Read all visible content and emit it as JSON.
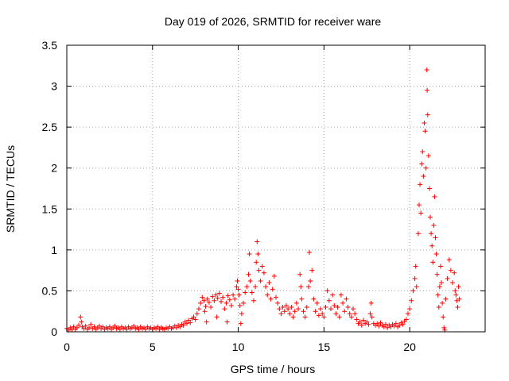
{
  "chart_data": {
    "type": "scatter",
    "title": "Day 019 of 2026, SRMTID for receiver ware",
    "xlabel": "GPS time / hours",
    "ylabel": "SRMTID / TECUs",
    "xlim": [
      0,
      24.4
    ],
    "ylim": [
      0,
      3.5
    ],
    "x_ticks": [
      0,
      5,
      10,
      15,
      20
    ],
    "x_tick_labels": [
      "0",
      "5",
      "10",
      "15",
      "20"
    ],
    "y_ticks": [
      0,
      0.5,
      1,
      1.5,
      2,
      2.5,
      3,
      3.5
    ],
    "y_tick_labels": [
      "0",
      "0.5",
      "1",
      "1.5",
      "2",
      "2.5",
      "3",
      "3.5"
    ],
    "grid": true,
    "marker": "+",
    "series": [
      {
        "name": "SRMTID",
        "color": "#ff0000",
        "points": [
          [
            0.0,
            0.04
          ],
          [
            0.1,
            0.02
          ],
          [
            0.2,
            0.05
          ],
          [
            0.3,
            0.03
          ],
          [
            0.4,
            0.06
          ],
          [
            0.5,
            0.03
          ],
          [
            0.6,
            0.05
          ],
          [
            0.7,
            0.08
          ],
          [
            0.8,
            0.18
          ],
          [
            0.85,
            0.12
          ],
          [
            0.9,
            0.06
          ],
          [
            1.0,
            0.04
          ],
          [
            1.1,
            0.07
          ],
          [
            1.2,
            0.03
          ],
          [
            1.3,
            0.05
          ],
          [
            1.4,
            0.09
          ],
          [
            1.5,
            0.04
          ],
          [
            1.6,
            0.06
          ],
          [
            1.7,
            0.03
          ],
          [
            1.8,
            0.05
          ],
          [
            1.9,
            0.07
          ],
          [
            2.0,
            0.04
          ],
          [
            2.1,
            0.06
          ],
          [
            2.2,
            0.03
          ],
          [
            2.3,
            0.05
          ],
          [
            2.4,
            0.04
          ],
          [
            2.5,
            0.06
          ],
          [
            2.6,
            0.03
          ],
          [
            2.7,
            0.05
          ],
          [
            2.8,
            0.07
          ],
          [
            2.9,
            0.04
          ],
          [
            3.0,
            0.05
          ],
          [
            3.1,
            0.03
          ],
          [
            3.2,
            0.06
          ],
          [
            3.3,
            0.04
          ],
          [
            3.4,
            0.05
          ],
          [
            3.5,
            0.03
          ],
          [
            3.6,
            0.06
          ],
          [
            3.7,
            0.04
          ],
          [
            3.8,
            0.05
          ],
          [
            3.9,
            0.07
          ],
          [
            4.0,
            0.04
          ],
          [
            4.1,
            0.05
          ],
          [
            4.2,
            0.03
          ],
          [
            4.3,
            0.06
          ],
          [
            4.4,
            0.04
          ],
          [
            4.5,
            0.05
          ],
          [
            4.6,
            0.03
          ],
          [
            4.7,
            0.06
          ],
          [
            4.8,
            0.04
          ],
          [
            4.9,
            0.05
          ],
          [
            5.0,
            0.03
          ],
          [
            5.1,
            0.05
          ],
          [
            5.2,
            0.04
          ],
          [
            5.3,
            0.06
          ],
          [
            5.4,
            0.03
          ],
          [
            5.5,
            0.05
          ],
          [
            5.6,
            0.04
          ],
          [
            5.7,
            0.03
          ],
          [
            5.8,
            0.05
          ],
          [
            5.9,
            0.04
          ],
          [
            6.0,
            0.06
          ],
          [
            6.1,
            0.04
          ],
          [
            6.2,
            0.05
          ],
          [
            6.3,
            0.07
          ],
          [
            6.4,
            0.05
          ],
          [
            6.5,
            0.08
          ],
          [
            6.6,
            0.06
          ],
          [
            6.7,
            0.09
          ],
          [
            6.8,
            0.08
          ],
          [
            6.9,
            0.12
          ],
          [
            7.0,
            0.1
          ],
          [
            7.1,
            0.14
          ],
          [
            7.2,
            0.11
          ],
          [
            7.3,
            0.16
          ],
          [
            7.4,
            0.18
          ],
          [
            7.5,
            0.15
          ],
          [
            7.6,
            0.22
          ],
          [
            7.7,
            0.28
          ],
          [
            7.8,
            0.35
          ],
          [
            7.9,
            0.42
          ],
          [
            8.0,
            0.38
          ],
          [
            8.05,
            0.25
          ],
          [
            8.1,
            0.31
          ],
          [
            8.15,
            0.12
          ],
          [
            8.2,
            0.4
          ],
          [
            8.3,
            0.36
          ],
          [
            8.4,
            0.3
          ],
          [
            8.5,
            0.43
          ],
          [
            8.6,
            0.38
          ],
          [
            8.7,
            0.45
          ],
          [
            8.75,
            0.18
          ],
          [
            8.8,
            0.41
          ],
          [
            8.9,
            0.47
          ],
          [
            9.0,
            0.37
          ],
          [
            9.1,
            0.42
          ],
          [
            9.2,
            0.28
          ],
          [
            9.3,
            0.35
          ],
          [
            9.35,
            0.12
          ],
          [
            9.4,
            0.44
          ],
          [
            9.5,
            0.39
          ],
          [
            9.6,
            0.32
          ],
          [
            9.7,
            0.45
          ],
          [
            9.8,
            0.4
          ],
          [
            9.9,
            0.55
          ],
          [
            9.95,
            0.62
          ],
          [
            10.0,
            0.52
          ],
          [
            10.05,
            0.45
          ],
          [
            10.1,
            0.32
          ],
          [
            10.15,
            0.1
          ],
          [
            10.2,
            0.22
          ],
          [
            10.3,
            0.35
          ],
          [
            10.4,
            0.48
          ],
          [
            10.5,
            0.55
          ],
          [
            10.6,
            0.7
          ],
          [
            10.65,
            0.95
          ],
          [
            10.7,
            0.62
          ],
          [
            10.8,
            0.48
          ],
          [
            10.9,
            0.38
          ],
          [
            11.0,
            0.55
          ],
          [
            11.05,
            0.85
          ],
          [
            11.1,
            1.1
          ],
          [
            11.15,
            0.95
          ],
          [
            11.2,
            0.75
          ],
          [
            11.3,
            0.62
          ],
          [
            11.4,
            0.8
          ],
          [
            11.5,
            0.72
          ],
          [
            11.6,
            0.55
          ],
          [
            11.7,
            0.45
          ],
          [
            11.8,
            0.6
          ],
          [
            11.9,
            0.4
          ],
          [
            12.0,
            0.52
          ],
          [
            12.1,
            0.68
          ],
          [
            12.2,
            0.42
          ],
          [
            12.3,
            0.35
          ],
          [
            12.4,
            0.28
          ],
          [
            12.5,
            0.22
          ],
          [
            12.6,
            0.3
          ],
          [
            12.7,
            0.25
          ],
          [
            12.8,
            0.32
          ],
          [
            12.9,
            0.28
          ],
          [
            13.0,
            0.22
          ],
          [
            13.1,
            0.3
          ],
          [
            13.2,
            0.18
          ],
          [
            13.3,
            0.25
          ],
          [
            13.4,
            0.35
          ],
          [
            13.5,
            0.28
          ],
          [
            13.6,
            0.7
          ],
          [
            13.65,
            0.55
          ],
          [
            13.7,
            0.4
          ],
          [
            13.8,
            0.25
          ],
          [
            13.9,
            0.18
          ],
          [
            14.0,
            0.3
          ],
          [
            14.1,
            0.55
          ],
          [
            14.15,
            0.97
          ],
          [
            14.2,
            0.62
          ],
          [
            14.3,
            0.75
          ],
          [
            14.4,
            0.4
          ],
          [
            14.5,
            0.25
          ],
          [
            14.6,
            0.35
          ],
          [
            14.7,
            0.2
          ],
          [
            14.8,
            0.28
          ],
          [
            14.9,
            0.22
          ],
          [
            15.0,
            0.18
          ],
          [
            15.1,
            0.3
          ],
          [
            15.2,
            0.5
          ],
          [
            15.3,
            0.38
          ],
          [
            15.4,
            0.28
          ],
          [
            15.5,
            0.45
          ],
          [
            15.6,
            0.32
          ],
          [
            15.7,
            0.22
          ],
          [
            15.8,
            0.3
          ],
          [
            15.9,
            0.18
          ],
          [
            16.0,
            0.45
          ],
          [
            16.1,
            0.35
          ],
          [
            16.2,
            0.25
          ],
          [
            16.3,
            0.4
          ],
          [
            16.4,
            0.3
          ],
          [
            16.5,
            0.22
          ],
          [
            16.6,
            0.18
          ],
          [
            16.7,
            0.28
          ],
          [
            16.8,
            0.22
          ],
          [
            16.9,
            0.15
          ],
          [
            17.0,
            0.1
          ],
          [
            17.1,
            0.12
          ],
          [
            17.2,
            0.08
          ],
          [
            17.3,
            0.14
          ],
          [
            17.4,
            0.1
          ],
          [
            17.5,
            0.12
          ],
          [
            17.6,
            0.09
          ],
          [
            17.7,
            0.22
          ],
          [
            17.75,
            0.35
          ],
          [
            17.8,
            0.18
          ],
          [
            17.9,
            0.1
          ],
          [
            18.0,
            0.08
          ],
          [
            18.1,
            0.1
          ],
          [
            18.2,
            0.07
          ],
          [
            18.3,
            0.11
          ],
          [
            18.4,
            0.08
          ],
          [
            18.5,
            0.06
          ],
          [
            18.6,
            0.09
          ],
          [
            18.7,
            0.05
          ],
          [
            18.8,
            0.08
          ],
          [
            18.9,
            0.06
          ],
          [
            19.0,
            0.09
          ],
          [
            19.1,
            0.07
          ],
          [
            19.2,
            0.1
          ],
          [
            19.3,
            0.06
          ],
          [
            19.4,
            0.08
          ],
          [
            19.5,
            0.11
          ],
          [
            19.6,
            0.09
          ],
          [
            19.7,
            0.13
          ],
          [
            19.8,
            0.15
          ],
          [
            19.9,
            0.22
          ],
          [
            20.0,
            0.28
          ],
          [
            20.1,
            0.38
          ],
          [
            20.2,
            0.5
          ],
          [
            20.3,
            0.65
          ],
          [
            20.35,
            0.8
          ],
          [
            20.4,
            0.55
          ],
          [
            20.5,
            1.2
          ],
          [
            20.55,
            1.55
          ],
          [
            20.6,
            1.8
          ],
          [
            20.65,
            1.45
          ],
          [
            20.7,
            2.05
          ],
          [
            20.75,
            2.2
          ],
          [
            20.8,
            1.9
          ],
          [
            20.85,
            2.55
          ],
          [
            20.9,
            2.45
          ],
          [
            20.95,
            2.0
          ],
          [
            21.0,
            3.2
          ],
          [
            21.02,
            2.95
          ],
          [
            21.05,
            2.65
          ],
          [
            21.1,
            2.15
          ],
          [
            21.15,
            1.75
          ],
          [
            21.2,
            1.4
          ],
          [
            21.25,
            1.2
          ],
          [
            21.3,
            1.05
          ],
          [
            21.35,
            0.85
          ],
          [
            21.4,
            1.3
          ],
          [
            21.45,
            1.65
          ],
          [
            21.5,
            1.15
          ],
          [
            21.55,
            0.95
          ],
          [
            21.6,
            0.7
          ],
          [
            21.65,
            0.45
          ],
          [
            21.7,
            0.3
          ],
          [
            21.75,
            0.55
          ],
          [
            21.8,
            0.8
          ],
          [
            21.85,
            0.6
          ],
          [
            21.9,
            0.35
          ],
          [
            21.95,
            0.18
          ],
          [
            22.0,
            0.05
          ],
          [
            22.05,
            0.02
          ],
          [
            22.1,
            0.4
          ],
          [
            22.2,
            0.65
          ],
          [
            22.3,
            0.88
          ],
          [
            22.4,
            0.75
          ],
          [
            22.5,
            0.6
          ],
          [
            22.6,
            0.72
          ],
          [
            22.65,
            0.5
          ],
          [
            22.7,
            0.45
          ],
          [
            22.75,
            0.38
          ],
          [
            22.8,
            0.3
          ],
          [
            22.85,
            0.55
          ],
          [
            22.9,
            0.4
          ]
        ]
      }
    ]
  }
}
